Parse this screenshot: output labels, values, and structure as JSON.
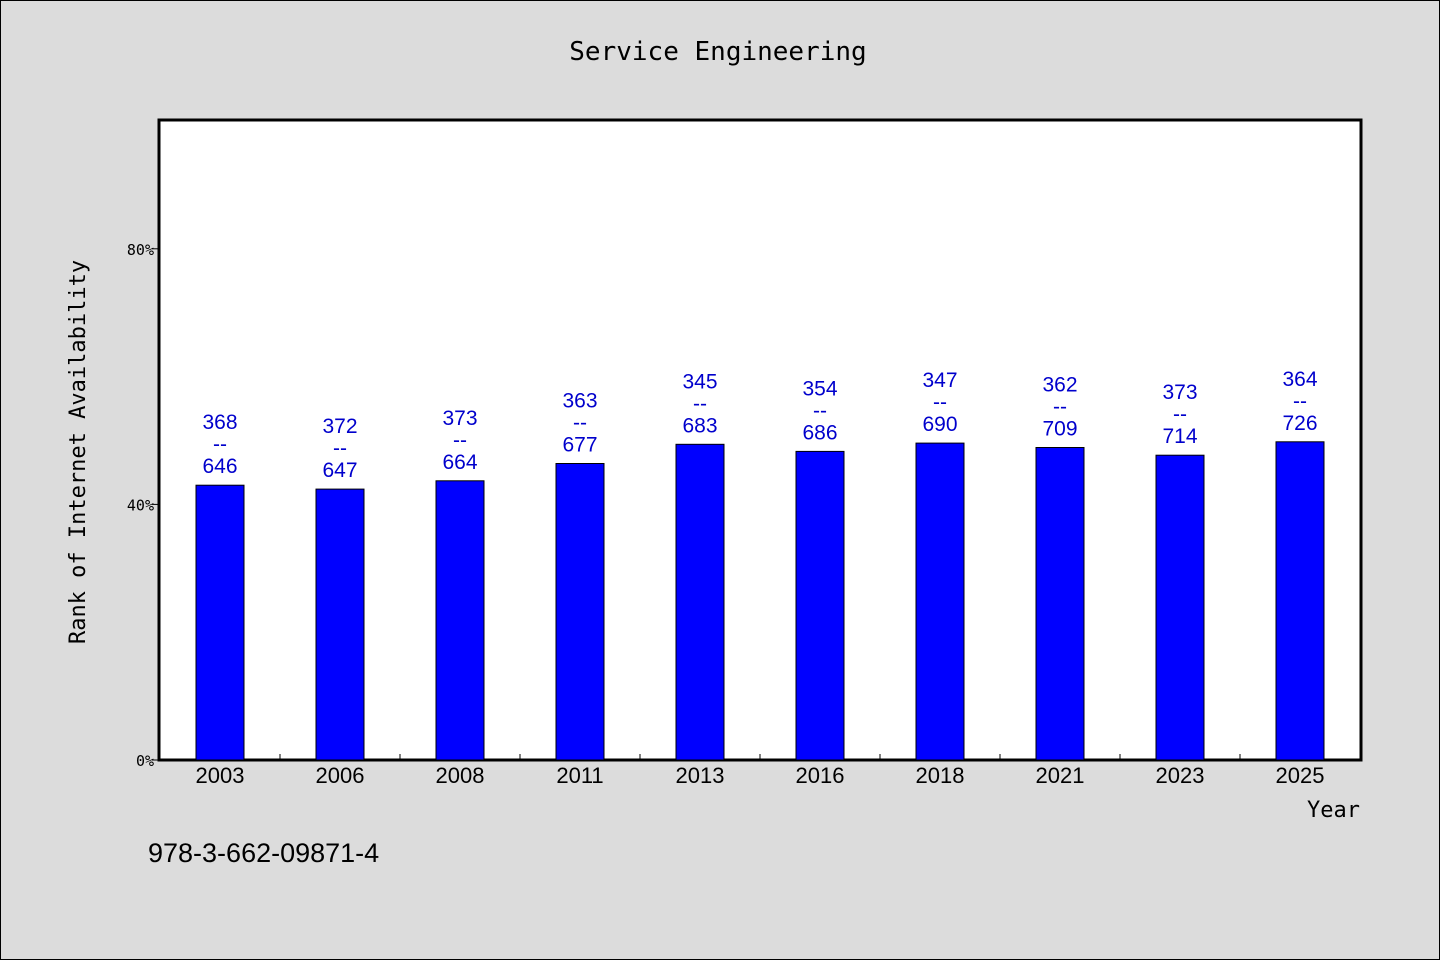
{
  "chart_data": {
    "type": "bar",
    "title": "Service Engineering",
    "xlabel": "Year",
    "ylabel": "Rank of Internet Availability",
    "categories": [
      "2003",
      "2006",
      "2008",
      "2011",
      "2013",
      "2016",
      "2018",
      "2021",
      "2023",
      "2025"
    ],
    "values": [
      43.0,
      42.4,
      43.7,
      46.4,
      49.4,
      48.3,
      49.6,
      48.9,
      47.7,
      49.8
    ],
    "label_numerators": [
      "368",
      "372",
      "373",
      "363",
      "345",
      "354",
      "347",
      "362",
      "373",
      "364"
    ],
    "label_separator": "--",
    "label_denominators": [
      "646",
      "647",
      "664",
      "677",
      "683",
      "686",
      "690",
      "709",
      "714",
      "726"
    ],
    "ylim": [
      0,
      100
    ],
    "yticks": [
      0,
      40,
      80
    ],
    "ytick_labels": [
      "0%",
      "40%",
      "80%"
    ],
    "grid": false,
    "bar_color": "#0000ff",
    "label_color": "#0000cc",
    "background_color": "#dcdcdc",
    "plot_background": "#ffffff"
  },
  "footer_text": "978-3-662-09871-4"
}
